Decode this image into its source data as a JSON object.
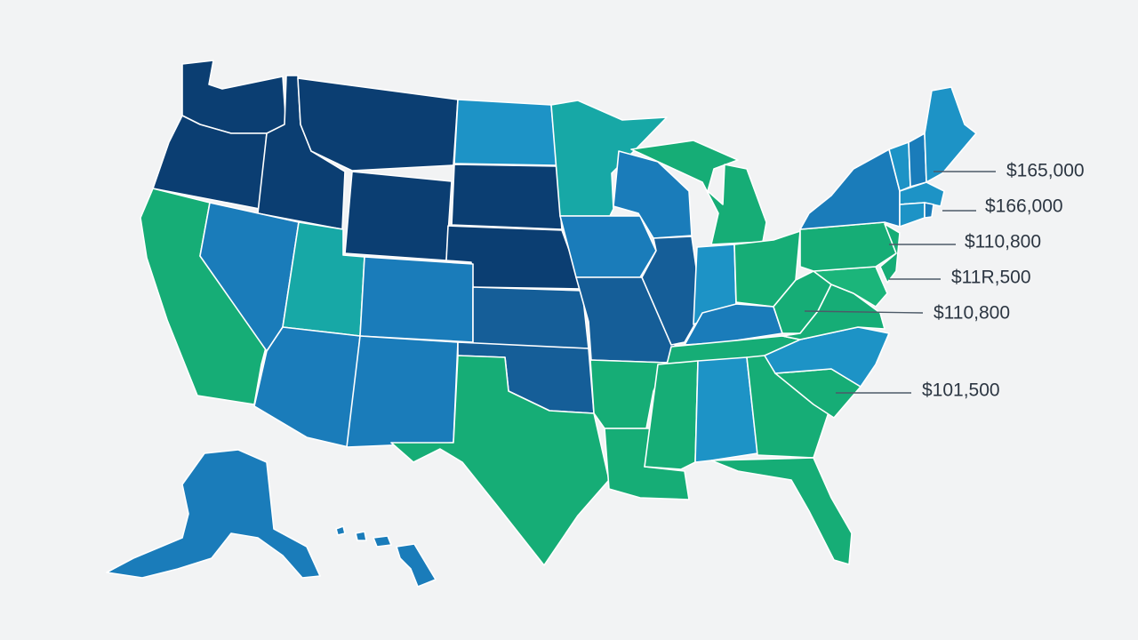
{
  "colors": {
    "background": "#f2f3f4",
    "navy": "#0b3e72",
    "dark_blue": "#155e98",
    "mid_blue": "#1a7cba",
    "light_blue": "#1d93c6",
    "teal": "#17a8a6",
    "green": "#16ad76",
    "green_light": "#1bb57a",
    "border": "#ffffff",
    "leader_line": "#4d5a68",
    "label_text": "#2c3642"
  },
  "callouts": [
    {
      "label": "$165,000"
    },
    {
      "label": "$166,000"
    },
    {
      "label": "$110,800"
    },
    {
      "label": "$11R,500"
    },
    {
      "label": "$110,800"
    },
    {
      "label": "$101,500"
    }
  ]
}
